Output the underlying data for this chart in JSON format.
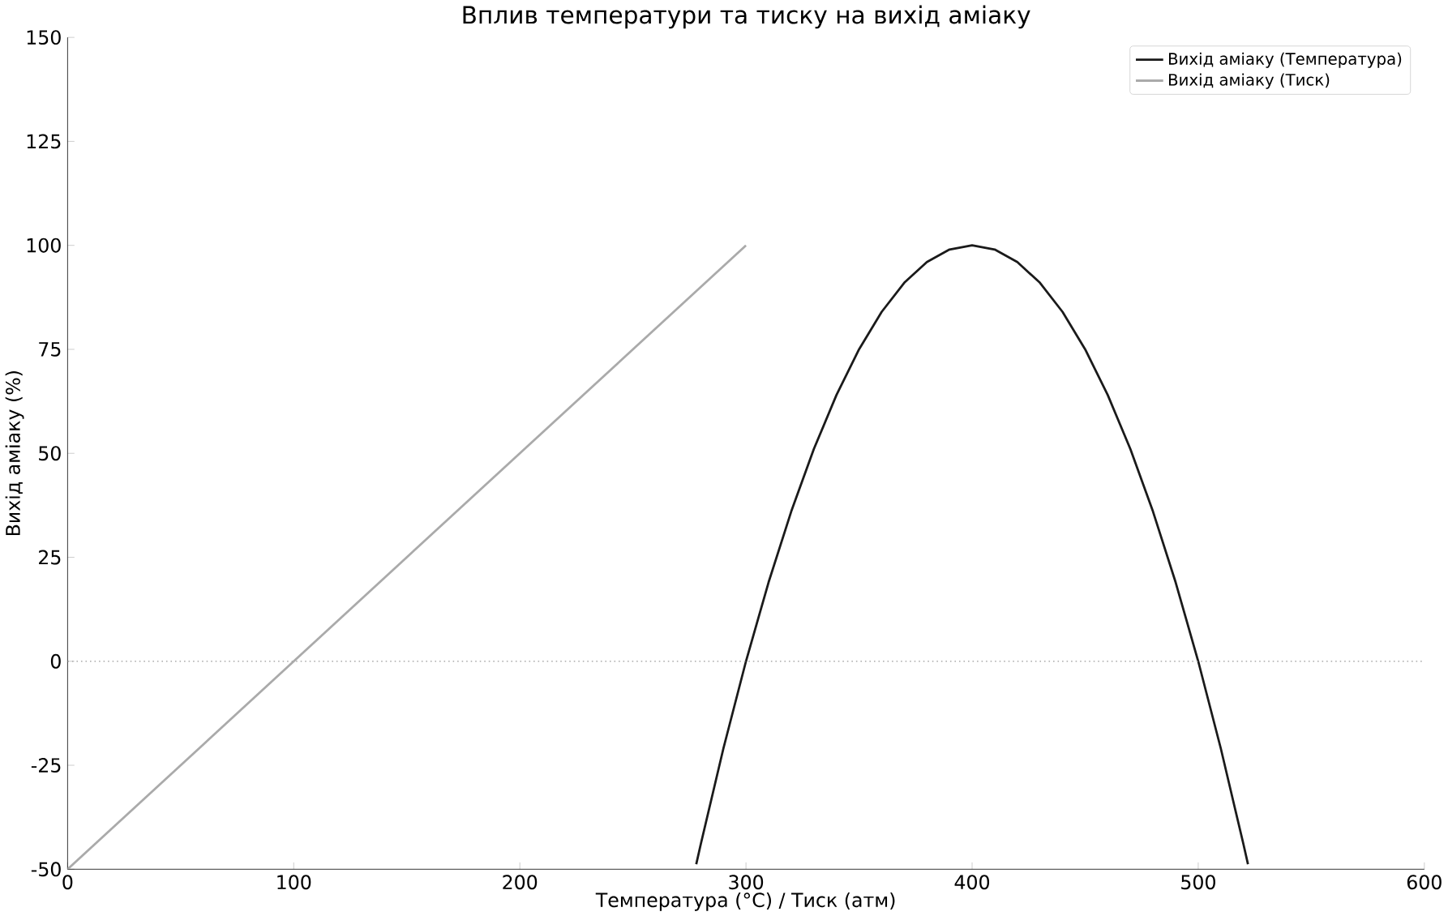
{
  "chart_data": {
    "type": "line",
    "title": "Вплив температури та тиску на вихід аміаку",
    "xlabel": "Температура (°C) / Тиск (атм)",
    "ylabel": "Вихід аміаку (%)",
    "xlim": [
      0,
      600
    ],
    "xticks": [
      0,
      100,
      200,
      300,
      400,
      500,
      600
    ],
    "ylim": [
      -50,
      150
    ],
    "yticks": [
      -50,
      -25,
      0,
      25,
      50,
      75,
      100,
      125,
      150
    ],
    "series": [
      {
        "name": "Вихід аміаку (Температура)",
        "color": "#1a1a1a",
        "x": [
          278,
          280,
          290,
          300,
          310,
          320,
          330,
          340,
          350,
          360,
          370,
          380,
          390,
          400,
          410,
          420,
          430,
          440,
          450,
          460,
          470,
          480,
          490,
          500,
          510,
          520,
          522
        ],
        "values": [
          -48.8,
          -44,
          -21,
          0,
          19,
          36,
          51,
          64,
          75,
          84,
          91,
          96,
          99,
          100,
          99,
          96,
          91,
          84,
          75,
          64,
          51,
          36,
          19,
          0,
          -21,
          -44,
          -48.8
        ]
      },
      {
        "name": "Вихід аміаку (Тиск)",
        "color": "#aaaaaa",
        "x": [
          0,
          300
        ],
        "values": [
          -50,
          100
        ]
      }
    ],
    "ref_lines": [
      {
        "axis": "y",
        "value": 0,
        "color": "#aaaaaa",
        "line_style": "dotted"
      }
    ],
    "legend": "top right",
    "grid": false,
    "marker": "none",
    "line_style": "solid"
  }
}
